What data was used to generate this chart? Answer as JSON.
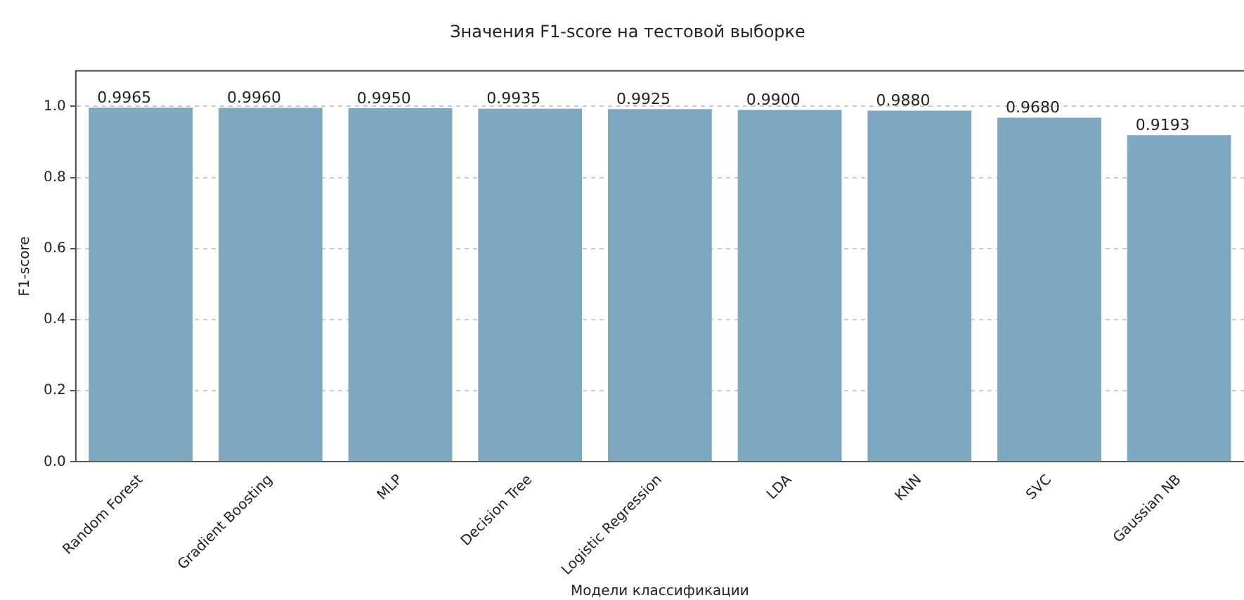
{
  "chart_data": {
    "type": "bar",
    "title": "Значения F1-score на тестовой выборке",
    "xlabel": "Модели классификации",
    "ylabel": "F1-score",
    "categories": [
      "Random Forest",
      "Gradient Boosting",
      "MLP",
      "Decision Tree",
      "Logistic Regression",
      "LDA",
      "KNN",
      "SVC",
      "Gaussian NB"
    ],
    "values": [
      0.9965,
      0.996,
      0.995,
      0.9935,
      0.9925,
      0.99,
      0.988,
      0.968,
      0.9193
    ],
    "value_labels": [
      "0.9965",
      "0.9960",
      "0.9950",
      "0.9935",
      "0.9925",
      "0.9900",
      "0.9880",
      "0.9680",
      "0.9193"
    ],
    "color": "#7ea7c1",
    "ylim": [
      0,
      1.1
    ],
    "yticks": [
      {
        "value": 0,
        "label": "0.0"
      },
      0.2,
      0.4,
      0.6,
      0.8,
      {
        "value": 1,
        "label": "1.0"
      }
    ],
    "grid": "y",
    "legend": false
  }
}
